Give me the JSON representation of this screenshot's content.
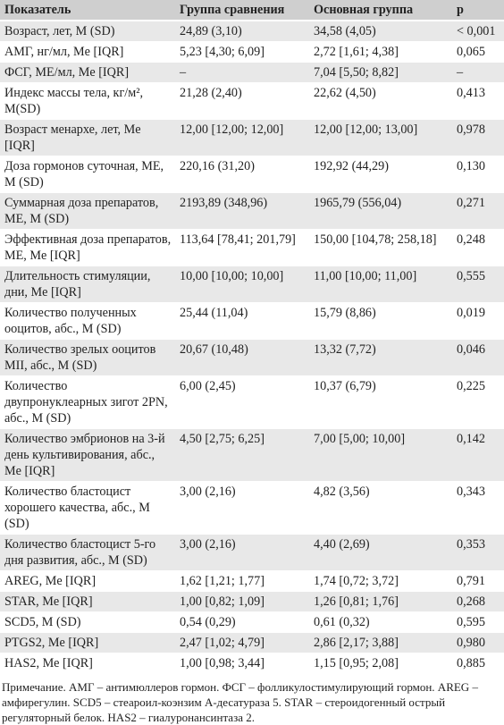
{
  "table": {
    "header": [
      "Показатель",
      "Группа сравнения",
      "Основная группа",
      "p"
    ],
    "rows": [
      [
        "Возраст, лет, M (SD)",
        "24,89 (3,10)",
        "34,58 (4,05)",
        "< 0,001"
      ],
      [
        "АМГ, нг/мл, Me [IQR]",
        "5,23 [4,30; 6,09]",
        "2,72 [1,61; 4,38]",
        "0,065"
      ],
      [
        "ФСГ, МЕ/мл, Me [IQR]",
        "–",
        "7,04 [5,50; 8,82]",
        "–"
      ],
      [
        "Индекс массы тела, кг/м², M(SD)",
        "21,28 (2,40)",
        "22,62 (4,50)",
        "0,413"
      ],
      [
        "Возраст менархе, лет, Me [IQR]",
        "12,00 [12,00; 12,00]",
        "12,00 [12,00; 13,00]",
        "0,978"
      ],
      [
        "Доза гормонов суточная, МЕ, M (SD)",
        "220,16 (31,20)",
        "192,92 (44,29)",
        "0,130"
      ],
      [
        "Суммарная доза препаратов, МЕ, M (SD)",
        "2193,89 (348,96)",
        "1965,79 (556,04)",
        "0,271"
      ],
      [
        "Эффективная доза препаратов, МЕ, Me [IQR]",
        "113,64 [78,41; 201,79]",
        "150,00 [104,78; 258,18]",
        "0,248"
      ],
      [
        "Длительность стимуляции, дни, Me [IQR]",
        "10,00 [10,00; 10,00]",
        "11,00 [10,00; 11,00]",
        "0,555"
      ],
      [
        "Количество полученных ооцитов, абс., M (SD)",
        "25,44 (11,04)",
        "15,79 (8,86)",
        "0,019"
      ],
      [
        "Количество зрелых ооцитов MII, абс., M (SD)",
        "20,67 (10,48)",
        "13,32 (7,72)",
        "0,046"
      ],
      [
        "Количество двупронуклеарных зигот 2PN, абс., M (SD)",
        "6,00 (2,45)",
        "10,37 (6,79)",
        "0,225"
      ],
      [
        "Количество эмбрионов на 3-й день культивирования, абс., Me [IQR]",
        "4,50 [2,75; 6,25]",
        "7,00 [5,00; 10,00]",
        "0,142"
      ],
      [
        "Количество бластоцист хорошего качества, абс., M (SD)",
        "3,00 (2,16)",
        "4,82 (3,56)",
        "0,343"
      ],
      [
        "Количество бластоцист 5-го дня развития, абс., M (SD)",
        "3,00 (2,16)",
        "4,40 (2,69)",
        "0,353"
      ],
      [
        "AREG, Me [IQR]",
        "1,62 [1,21; 1,77]",
        "1,74 [0,72; 3,72]",
        "0,791"
      ],
      [
        "STAR, Me [IQR]",
        "1,00 [0,82; 1,09]",
        "1,26 [0,81; 1,76]",
        "0,268"
      ],
      [
        "SCD5, M (SD)",
        "0,54 (0,29)",
        "0,61 (0,32)",
        "0,595"
      ],
      [
        "PTGS2, Me [IQR]",
        "2,47 [1,02; 4,79]",
        "2,86 [2,17; 3,88]",
        "0,980"
      ],
      [
        "HAS2, Me [IQR]",
        "1,00 [0,98; 3,44]",
        "1,15 [0,95; 2,08]",
        "0,885"
      ]
    ],
    "note": "Примечание. АМГ – антимюллеров гормон. ФСГ – фолликулостимулирующий гормон. AREG – амфирегулин. SCD5 – стеароил-коэнзим А-десатураза 5. STAR – стероидогенный острый регуляторный белок. HAS2 – гиалуронансинтаза 2."
  }
}
